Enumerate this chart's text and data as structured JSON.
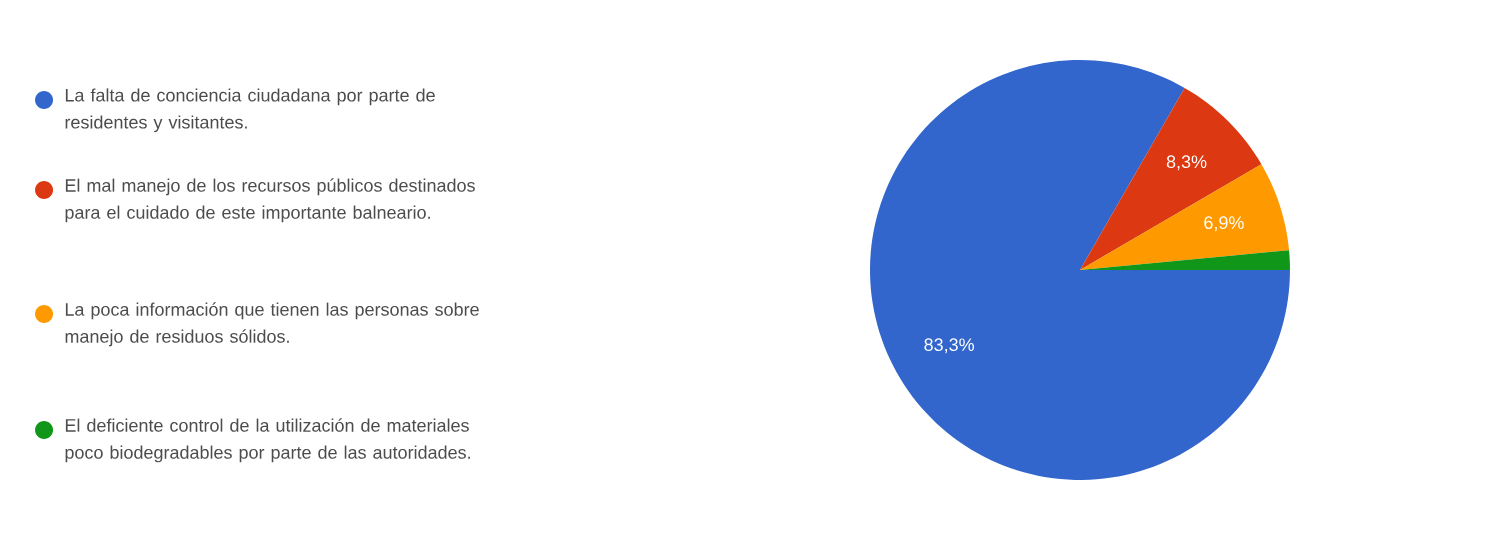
{
  "chart_data": {
    "type": "pie",
    "categories": [
      "La falta de conciencia ciudadana por parte de residentes y visitantes.",
      "El mal manejo de los recursos públicos destinados para el cuidado de este importante balneario.",
      "La poca información que tienen las personas sobre manejo de residuos sólidos.",
      "El deficiente control de la utilización de materiales poco biodegradables por parte de las autoridades."
    ],
    "values": [
      83.3,
      8.3,
      6.9,
      1.5
    ],
    "colors": [
      "#3366cc",
      "#dc3912",
      "#ff9900",
      "#109618"
    ],
    "value_labels": [
      "83,3%",
      "8,3%",
      "6,9%",
      null
    ],
    "legend": "left"
  }
}
